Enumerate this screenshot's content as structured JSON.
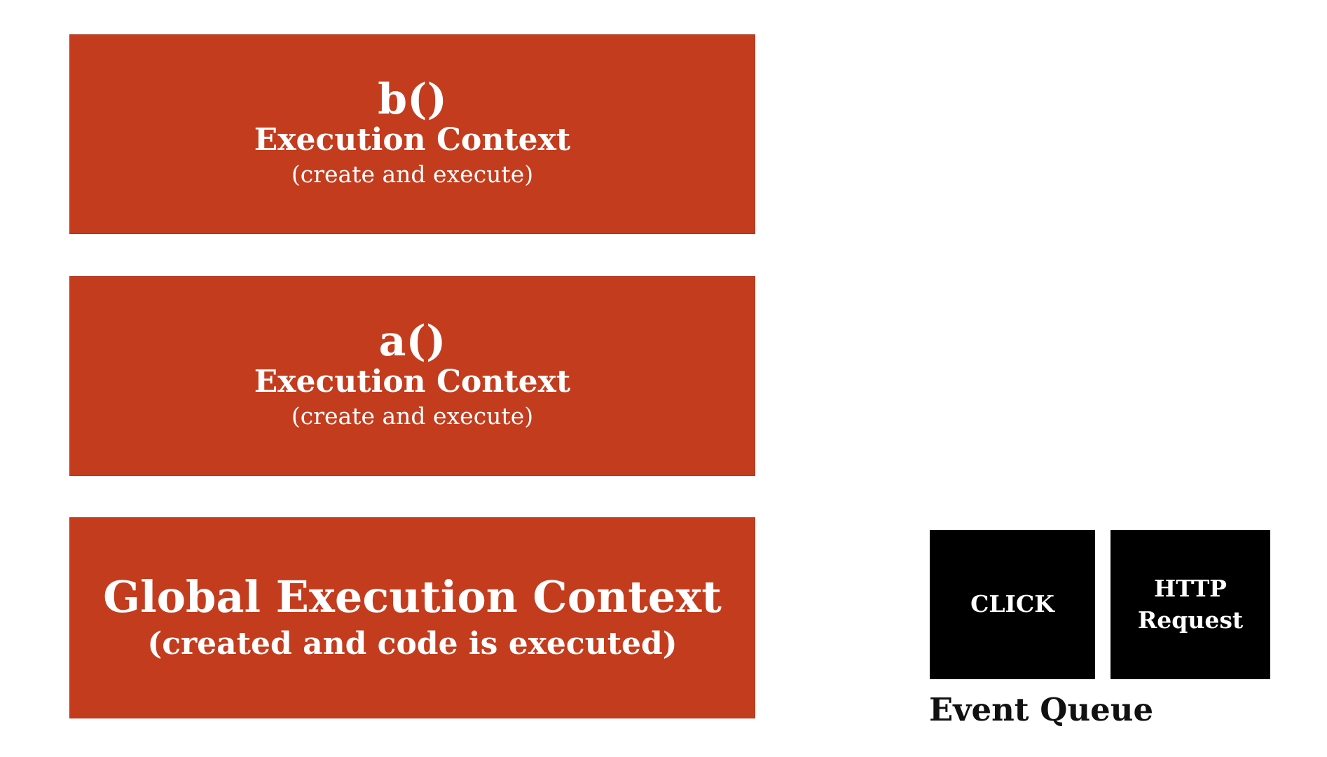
{
  "execution_stack": [
    {
      "function": "b()",
      "title": "Execution Context",
      "subtitle": "(create and execute)"
    },
    {
      "function": "a()",
      "title": "Execution Context",
      "subtitle": "(create and execute)"
    },
    {
      "title": "Global Execution Context",
      "subtitle": "(created and code is executed)"
    }
  ],
  "event_queue": {
    "label": "Event Queue",
    "items": [
      "CLICK",
      "HTTP\nRequest"
    ]
  },
  "colors": {
    "context_box": "#c43c1e",
    "queue_item": "#000000",
    "text_on_box": "#ffffff"
  }
}
